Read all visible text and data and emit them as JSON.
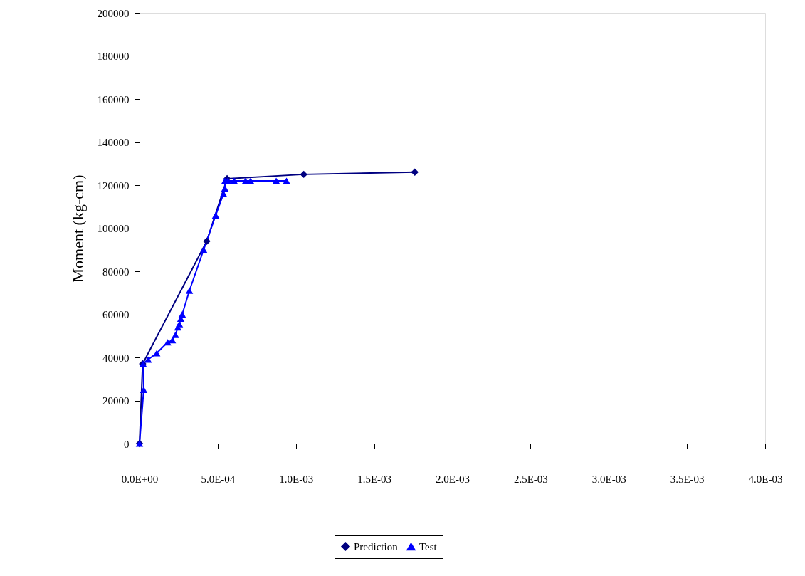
{
  "chart_data": {
    "type": "line",
    "ylabel": "Moment (kg-cm)",
    "legend": "bottom",
    "grid": false,
    "xlim": [
      0,
      0.004
    ],
    "xticks": [
      {
        "value": 0,
        "label": "0.0E+00"
      },
      {
        "value": 0.0005,
        "label": "5.0E-04"
      },
      {
        "value": 0.001,
        "label": "1.0E-03"
      },
      {
        "value": 0.0015,
        "label": "1.5E-03"
      },
      {
        "value": 0.002,
        "label": "2.0E-03"
      },
      {
        "value": 0.0025,
        "label": "2.5E-03"
      },
      {
        "value": 0.003,
        "label": "3.0E-03"
      },
      {
        "value": 0.0035,
        "label": "3.5E-03"
      },
      {
        "value": 0.004,
        "label": "4.0E-03"
      }
    ],
    "ylim": [
      0,
      200000
    ],
    "yticks": [
      0,
      20000,
      40000,
      60000,
      80000,
      100000,
      120000,
      140000,
      160000,
      180000,
      200000
    ],
    "line_style": "solid",
    "series": [
      {
        "name": "Prediction",
        "color": "#000080",
        "marker": "diamond",
        "x": [
          0,
          2e-05,
          0.00043,
          0.00056,
          0.00105,
          0.00176
        ],
        "values": [
          0,
          37000,
          94000,
          123000,
          125000,
          126000
        ]
      },
      {
        "name": "Test",
        "color": "#0000ff",
        "marker": "triangle",
        "x": [
          0,
          2.7e-05,
          2.3e-05,
          5.5e-05,
          0.00011,
          0.00018,
          0.00021,
          0.00023,
          0.000245,
          0.000255,
          0.000264,
          0.000273,
          0.000319,
          0.00041,
          0.000487,
          0.000537,
          0.000546,
          0.000546,
          0.000564,
          0.000605,
          0.000678,
          0.00071,
          0.000874,
          0.00094
        ],
        "values": [
          0,
          25000,
          37000,
          39000,
          42000,
          47000,
          48000,
          50500,
          54000,
          55500,
          58000,
          60000,
          71000,
          90000,
          106000,
          116000,
          118500,
          122000,
          122000,
          122000,
          122000,
          122000,
          122000,
          122000
        ]
      }
    ]
  }
}
